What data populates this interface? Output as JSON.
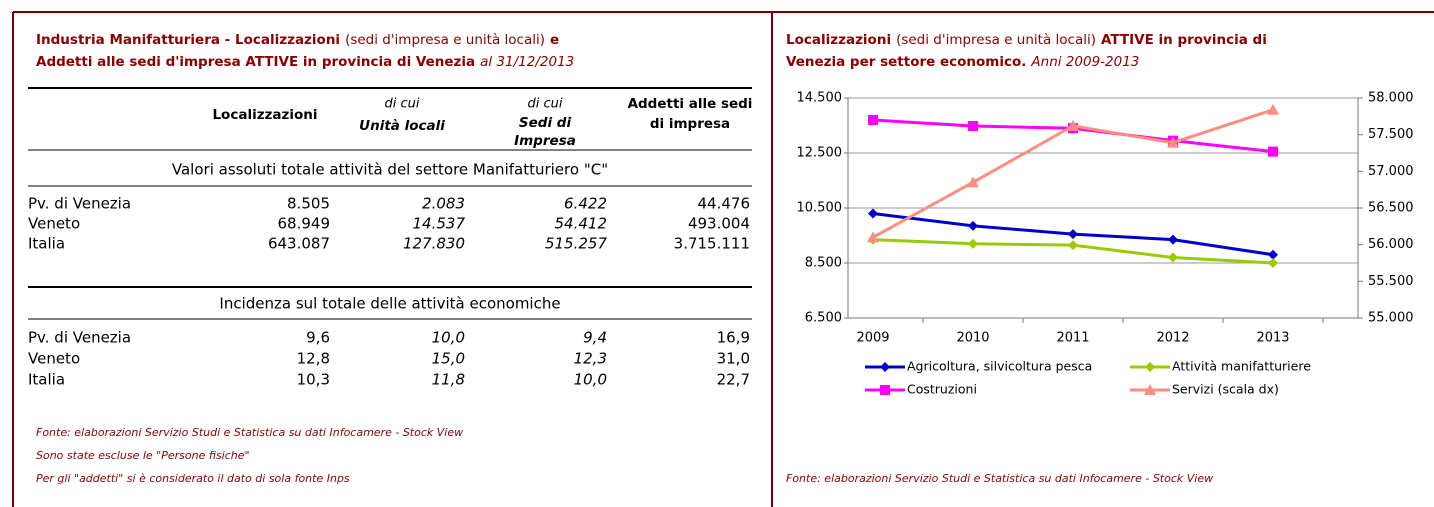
{
  "table_panel": {
    "title": [
      [
        {
          "text": "Industria Manifatturiera - Localizzazioni",
          "style": "bold"
        },
        {
          "text": "(sedi d'impresa e unità locali)",
          "style": "normal"
        },
        {
          "text": "e",
          "style": "bold"
        }
      ],
      [
        {
          "text": "Addetti alle sedi d'impresa ATTIVE in provincia di Venezia",
          "style": "bold"
        },
        {
          "text": "al 31/12/2013",
          "style": "italic"
        }
      ]
    ],
    "columns": [
      {
        "label": "Localizzazioni"
      },
      {
        "note": "di cui",
        "label": "Unità locali"
      },
      {
        "note": "di cui",
        "label": "Sedi di Impresa"
      },
      {
        "label": "Addetti alle sedi di impresa"
      }
    ],
    "sections": [
      {
        "label": "Valori assoluti totale attività del settore Manifatturiero \"C\"",
        "rows": [
          [
            "Pv. di Venezia",
            "8.505",
            "2.083",
            "6.422",
            "44.476"
          ],
          [
            "Veneto",
            "68.949",
            "14.537",
            "54.412",
            "493.004"
          ],
          [
            "Italia",
            "643.087",
            "127.830",
            "515.257",
            "3.715.111"
          ]
        ]
      },
      {
        "label": "Incidenza sul totale  delle attività economiche",
        "rows": [
          [
            "Pv. di Venezia",
            "9,6",
            "10,0",
            "9,4",
            "16,9"
          ],
          [
            "Veneto",
            "12,8",
            "15,0",
            "12,3",
            "31,0"
          ],
          [
            "Italia",
            "10,3",
            "11,8",
            "10,0",
            "22,7"
          ]
        ]
      }
    ],
    "notes": [
      "Fonte: elaborazioni Servizio Studi e Statistica su dati Infocamere - Stock View",
      "Sono state escluse le \"Persone fisiche\"",
      "Per gli \"addetti\" si è considerato il dato di sola fonte Inps"
    ]
  },
  "chart_data": {
    "type": "line",
    "title": [
      [
        {
          "text": "Localizzazioni",
          "style": "bold"
        },
        {
          "text": "(sedi d'impresa e unità locali)",
          "style": "normal"
        },
        {
          "text": "ATTIVE in provincia di",
          "style": "bold"
        }
      ],
      [
        {
          "text": "Venezia per settore economico.",
          "style": "bold"
        },
        {
          "text": "Anni 2009-2013",
          "style": "italic"
        }
      ]
    ],
    "categories": [
      "2009",
      "2010",
      "2011",
      "2012",
      "2013"
    ],
    "ylim": [
      6500,
      14500
    ],
    "yticks": [
      {
        "value": 6500,
        "label": "6.500"
      },
      {
        "value": 8500,
        "label": "8.500"
      },
      {
        "value": 10500,
        "label": "10.500"
      },
      {
        "value": 12500,
        "label": "12.500"
      },
      {
        "value": 14500,
        "label": "14.500"
      }
    ],
    "y2lim": [
      55000,
      58000
    ],
    "y2ticks": [
      {
        "value": 55000,
        "label": "55.000"
      },
      {
        "value": 55500,
        "label": "55.500"
      },
      {
        "value": 56000,
        "label": "56.000"
      },
      {
        "value": 56500,
        "label": "56.500"
      },
      {
        "value": 57000,
        "label": "57.000"
      },
      {
        "value": 57500,
        "label": "57.500"
      },
      {
        "value": 58000,
        "label": "58.000"
      }
    ],
    "grid": true,
    "series": [
      {
        "name": "Agricoltura, silvicoltura pesca",
        "color": "#0000cc",
        "marker": "diamond",
        "values": [
          10300,
          9850,
          9550,
          9350,
          8800
        ]
      },
      {
        "name": "Attività manifatturiere",
        "color": "#99cc00",
        "marker": "diamond",
        "values": [
          9350,
          9200,
          9150,
          8700,
          8500
        ]
      },
      {
        "name": "Costruzioni",
        "color": "#ff00ff",
        "marker": "square",
        "values": [
          13700,
          13480,
          13400,
          12950,
          12550
        ]
      },
      {
        "name": "Servizi (scala dx)",
        "color": "#ff8c80",
        "marker": "triangle",
        "axis": "y2",
        "values": [
          56100,
          56850,
          57620,
          57390,
          57840
        ]
      }
    ],
    "note": "Fonte: elaborazioni Servizio Studi e Statistica su dati Infocamere - Stock View"
  }
}
